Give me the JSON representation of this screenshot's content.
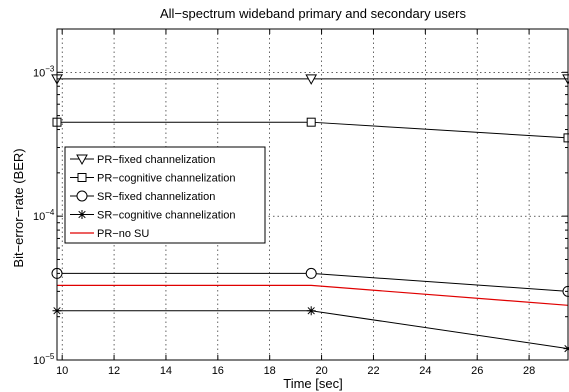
{
  "chart_data": {
    "type": "line",
    "title": "All−spectrum wideband primary and secondary users",
    "xlabel": "Time [sec]",
    "ylabel": "Bit−error−rate (BER)",
    "xlim": [
      9.8,
      29.5
    ],
    "ylim": [
      1e-05,
      0.002
    ],
    "yscale": "log",
    "grid": true,
    "legend_position": "middle-left",
    "xticks": [
      10,
      12,
      14,
      16,
      18,
      20,
      22,
      24,
      26,
      28
    ],
    "xtick_labels": [
      "10",
      "12",
      "14",
      "16",
      "18",
      "20",
      "22",
      "24",
      "26",
      "28"
    ],
    "yticks": [
      1e-05,
      0.0001,
      0.001
    ],
    "ytick_labels": [
      {
        "base": "10",
        "exp": "−5"
      },
      {
        "base": "10",
        "exp": "−4"
      },
      {
        "base": "10",
        "exp": "−3"
      }
    ],
    "series": [
      {
        "name": "PR−fixed channelization",
        "marker": "triangle-down",
        "color": "#000000",
        "x": [
          9.8,
          19.6,
          29.5
        ],
        "values": [
          0.0009,
          0.0009,
          0.0009
        ]
      },
      {
        "name": "PR−cognitive channelization",
        "marker": "square",
        "color": "#000000",
        "x": [
          9.8,
          19.6,
          29.5
        ],
        "values": [
          0.00045,
          0.00045,
          0.00035
        ]
      },
      {
        "name": "SR−fixed channelization",
        "marker": "circle",
        "color": "#000000",
        "x": [
          9.8,
          19.6,
          29.5
        ],
        "values": [
          4e-05,
          4e-05,
          3e-05
        ]
      },
      {
        "name": "SR−cognitive channelization",
        "marker": "asterisk",
        "color": "#000000",
        "x": [
          9.8,
          19.6,
          29.5
        ],
        "values": [
          2.2e-05,
          2.2e-05,
          1.2e-05
        ]
      },
      {
        "name": "PR−no SU",
        "marker": "none",
        "color": "#e00000",
        "x": [
          9.8,
          19.6,
          29.5
        ],
        "values": [
          3.3e-05,
          3.3e-05,
          2.4e-05
        ]
      }
    ]
  }
}
